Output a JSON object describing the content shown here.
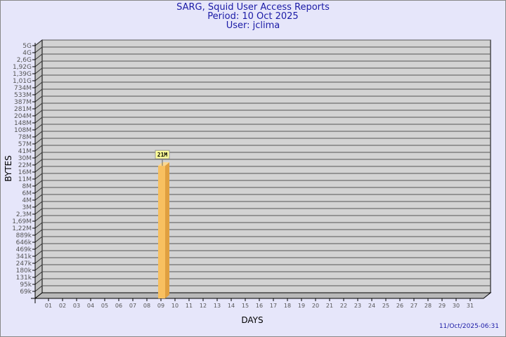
{
  "header": {
    "title": "SARG, Squid User Access Reports",
    "period": "Period: 10 Oct 2025",
    "user": "User: jclima"
  },
  "footer": {
    "timestamp": "11/Oct/2025-06:31"
  },
  "chart_data": {
    "type": "bar",
    "xlabel": "DAYS",
    "ylabel": "BYTES",
    "y_scale": "log",
    "grid": true,
    "y_tick_labels": [
      "5G",
      "4G",
      "2,6G",
      "1,92G",
      "1,39G",
      "1,01G",
      "734M",
      "533M",
      "387M",
      "281M",
      "204M",
      "148M",
      "108M",
      "78M",
      "57M",
      "41M",
      "30M",
      "22M",
      "16M",
      "11M",
      "8M",
      "6M",
      "4M",
      "3M",
      "2,3M",
      "1,69M",
      "1,22M",
      "889k",
      "646k",
      "469k",
      "341k",
      "247k",
      "180k",
      "131k",
      "95k",
      "69k"
    ],
    "categories": [
      "01",
      "02",
      "03",
      "04",
      "05",
      "06",
      "07",
      "08",
      "09",
      "10",
      "11",
      "12",
      "13",
      "14",
      "15",
      "16",
      "17",
      "18",
      "19",
      "20",
      "21",
      "22",
      "23",
      "24",
      "25",
      "26",
      "27",
      "28",
      "29",
      "30",
      "31"
    ],
    "series": [
      {
        "values": [
          null,
          null,
          null,
          null,
          null,
          null,
          null,
          null,
          null,
          21000000,
          null,
          null,
          null,
          null,
          null,
          null,
          null,
          null,
          null,
          null,
          null,
          null,
          null,
          null,
          null,
          null,
          null,
          null,
          null,
          null,
          null
        ]
      }
    ],
    "data_labels": {
      "10": "21M"
    },
    "colors": {
      "bar": "#f8c060",
      "bar_side": "#e0a040",
      "plot_bg": "#d3d3d3",
      "label_bg": "#ffff99",
      "text": "#1a1aa6"
    }
  }
}
